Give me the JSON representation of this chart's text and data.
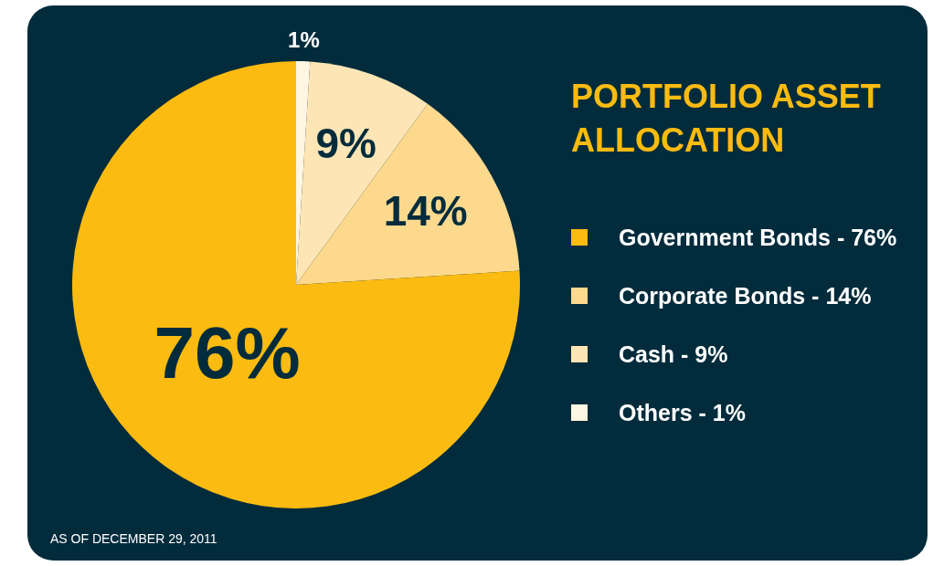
{
  "chart_data": {
    "type": "pie",
    "title": "PORTFOLIO ASSET ALLOCATION",
    "categories": [
      "Government Bonds - 76%",
      "Corporate Bonds - 14%",
      "Cash - 9%",
      "Others - 1%"
    ],
    "values": [
      76,
      14,
      9,
      1
    ],
    "colors": [
      "#fbbb10",
      "#fdd98e",
      "#fee5b5",
      "#fff6e3"
    ],
    "value_labels": [
      "76%",
      "14%",
      "9%",
      "1%"
    ],
    "legend": "right",
    "annotations": [
      "AS OF DECEMBER 29, 2011"
    ]
  }
}
